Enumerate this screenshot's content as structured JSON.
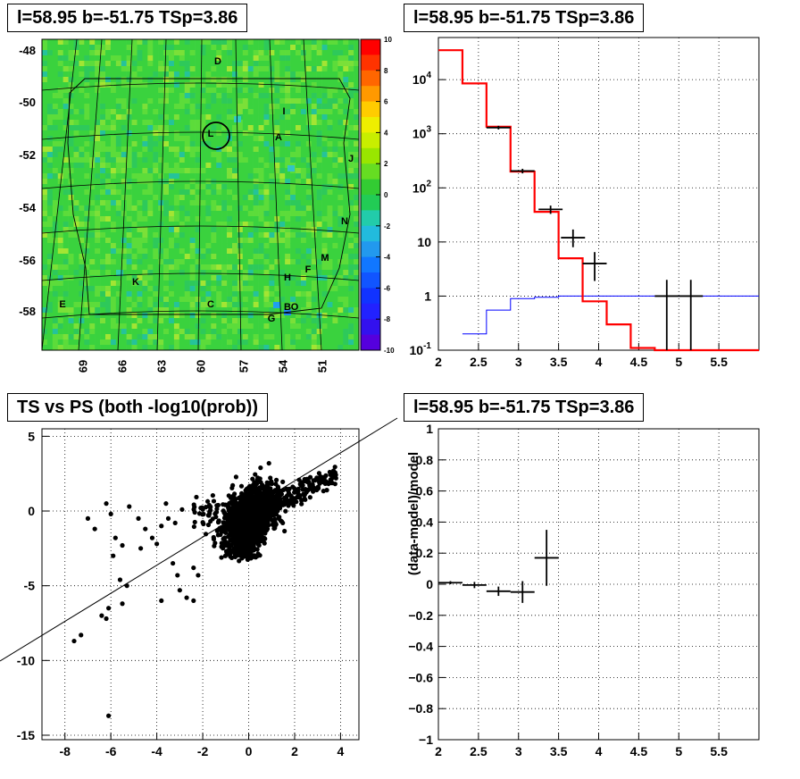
{
  "panels": {
    "skymap_title": "l=58.95 b=-51.75 TSp=3.86",
    "spectrum_title": "l=58.95 b=-51.75 TSp=3.86",
    "scatter_title": "TS vs PS (both -log10(prob))",
    "residual_title": "l=58.95 b=-51.75 TSp=3.86"
  },
  "chart_data": [
    {
      "type": "heatmap",
      "title": "l=58.95 b=-51.75 TSp=3.86",
      "x_ticks": [
        "69",
        "66",
        "63",
        "60",
        "57",
        "54",
        "51"
      ],
      "y_ticks": [
        "-48",
        "-50",
        "-52",
        "-54",
        "-56",
        "-58"
      ],
      "colorbar_ticks": [
        "10",
        "8",
        "6",
        "4",
        "2",
        "0",
        "-2",
        "-4",
        "-6",
        "-8",
        "-10"
      ],
      "zlim": [
        -10,
        10
      ],
      "source_labels": [
        "D",
        "I",
        "L",
        "A",
        "J",
        "N",
        "M",
        "F",
        "H",
        "K",
        "C",
        "E",
        "G",
        "B",
        "O"
      ]
    },
    {
      "type": "line",
      "title": "l=58.95 b=-51.75 TSp=3.86",
      "log_y": true,
      "xlim": [
        2,
        6
      ],
      "ylim": [
        0.1,
        60000
      ],
      "x_ticks": [
        "2",
        "2.5",
        "3",
        "3.5",
        "4",
        "4.5",
        "5",
        "5.5"
      ],
      "y_ticks": [
        "10^-1",
        "1",
        "10",
        "10^2",
        "10^3",
        "10^4"
      ],
      "grid": true,
      "series": [
        {
          "color": "#ff0000",
          "bins_x": [
            2.0,
            2.3,
            2.6,
            2.9,
            3.2,
            3.5,
            3.8,
            4.1,
            4.4,
            4.7,
            5.0,
            5.3,
            5.6,
            6.0
          ],
          "values": [
            35000,
            8500,
            1350,
            200,
            36,
            5,
            0.8,
            0.3,
            0.11,
            0.1,
            0.1,
            0.1,
            0.1
          ]
        },
        {
          "color": "#0000ff",
          "bins_x": [
            2.3,
            2.6,
            2.9,
            3.2,
            3.5,
            3.8,
            4.1,
            6.0
          ],
          "values": [
            0.2,
            0.55,
            0.9,
            0.95,
            1.0,
            1.0,
            1.0
          ]
        },
        {
          "color": "#000000",
          "points": [
            {
              "x": 2.75,
              "xerr": 0.15,
              "y": 1300,
              "ylo": 1200,
              "yhi": 1400
            },
            {
              "x": 3.05,
              "xerr": 0.15,
              "y": 205,
              "ylo": 185,
              "yhi": 225
            },
            {
              "x": 3.4,
              "xerr": 0.15,
              "y": 40,
              "ylo": 33,
              "yhi": 47
            },
            {
              "x": 3.68,
              "xerr": 0.15,
              "y": 12,
              "ylo": 8,
              "yhi": 17
            },
            {
              "x": 3.95,
              "xerr": 0.15,
              "y": 4,
              "ylo": 1.9,
              "yhi": 6.5
            },
            {
              "x": 4.85,
              "xerr": 0.15,
              "y": 1,
              "ylo": 0.1,
              "yhi": 2.0
            },
            {
              "x": 5.15,
              "xerr": 0.15,
              "y": 1,
              "ylo": 0.1,
              "yhi": 2.0
            }
          ]
        }
      ]
    },
    {
      "type": "scatter",
      "title": "TS vs PS (both -log10(prob))",
      "xlim": [
        -9,
        4.8
      ],
      "ylim": [
        -15.3,
        5.5
      ],
      "x_ticks": [
        "-8",
        "-6",
        "-4",
        "-2",
        "0",
        "2",
        "4"
      ],
      "y_ticks": [
        "5",
        "0",
        "-5",
        "-10",
        "-15"
      ],
      "grid": true,
      "diagonal": true
    },
    {
      "type": "line",
      "title": "l=58.95 b=-51.75 TSp=3.86",
      "ylabel": "(data-model)/model",
      "xlim": [
        2,
        6
      ],
      "ylim": [
        -1,
        1
      ],
      "x_ticks": [
        "2",
        "2.5",
        "3",
        "3.5",
        "4",
        "4.5",
        "5",
        "5.5"
      ],
      "y_ticks": [
        "1",
        "0.8",
        "0.6",
        "0.4",
        "0.2",
        "0",
        "−0.2",
        "−0.4",
        "−0.6",
        "−0.8",
        "−1"
      ],
      "grid": true,
      "points": [
        {
          "x": 2.15,
          "xerr": 0.15,
          "y": 0.01,
          "err": 0.01
        },
        {
          "x": 2.45,
          "xerr": 0.15,
          "y": -0.005,
          "err": 0.02
        },
        {
          "x": 2.75,
          "xerr": 0.15,
          "y": -0.045,
          "err": 0.03
        },
        {
          "x": 3.05,
          "xerr": 0.15,
          "y": -0.05,
          "err": 0.07
        },
        {
          "x": 3.35,
          "xerr": 0.15,
          "y": 0.17,
          "err": 0.18
        }
      ]
    }
  ]
}
